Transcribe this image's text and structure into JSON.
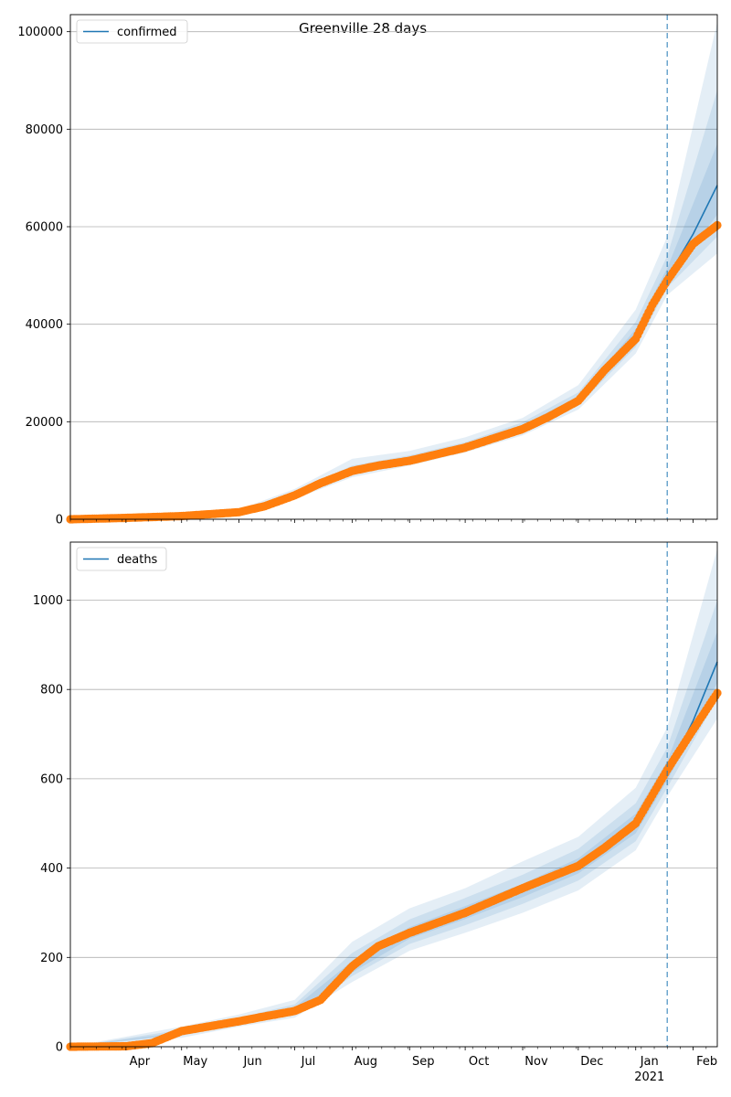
{
  "title": "Greenville 28 days",
  "colors": {
    "model_line": "#1f77b4",
    "observed": "#ff7f0e",
    "band": "#1f77b4",
    "grid": "#b0b0b0",
    "forecast_line": "#1f77b4"
  },
  "x_axis": {
    "start": "2020-03-02",
    "end": "2021-02-14",
    "month_ticks": [
      {
        "date": "2020-04-01",
        "label": "Apr"
      },
      {
        "date": "2020-05-01",
        "label": "May"
      },
      {
        "date": "2020-06-01",
        "label": "Jun"
      },
      {
        "date": "2020-07-01",
        "label": "Jul"
      },
      {
        "date": "2020-08-01",
        "label": "Aug"
      },
      {
        "date": "2020-09-01",
        "label": "Sep"
      },
      {
        "date": "2020-10-01",
        "label": "Oct"
      },
      {
        "date": "2020-11-01",
        "label": "Nov"
      },
      {
        "date": "2020-12-01",
        "label": "Dec"
      },
      {
        "date": "2021-01-01",
        "label": "Jan"
      },
      {
        "date": "2021-02-01",
        "label": "Feb"
      }
    ],
    "year_label": {
      "date": "2021-01-01",
      "label": "2021"
    },
    "forecast_start": "2021-01-18"
  },
  "chart_data": [
    {
      "type": "line",
      "legend": "confirmed",
      "legend_position": "upper-left",
      "grid": true,
      "ylim": [
        0,
        103500
      ],
      "yticks": [
        0,
        20000,
        40000,
        60000,
        80000,
        100000
      ],
      "model": [
        {
          "x": "2020-03-02",
          "y": 0
        },
        {
          "x": "2020-04-01",
          "y": 300
        },
        {
          "x": "2020-05-01",
          "y": 700
        },
        {
          "x": "2020-06-01",
          "y": 1500
        },
        {
          "x": "2020-06-15",
          "y": 2600
        },
        {
          "x": "2020-07-01",
          "y": 5000
        },
        {
          "x": "2020-07-15",
          "y": 7600
        },
        {
          "x": "2020-08-01",
          "y": 9800
        },
        {
          "x": "2020-08-15",
          "y": 10900
        },
        {
          "x": "2020-09-01",
          "y": 12000
        },
        {
          "x": "2020-10-01",
          "y": 14800
        },
        {
          "x": "2020-11-01",
          "y": 18600
        },
        {
          "x": "2020-11-15",
          "y": 21000
        },
        {
          "x": "2020-12-01",
          "y": 24500
        },
        {
          "x": "2020-12-15",
          "y": 30000
        },
        {
          "x": "2021-01-01",
          "y": 37500
        },
        {
          "x": "2021-01-10",
          "y": 44000
        },
        {
          "x": "2021-01-18",
          "y": 49500
        },
        {
          "x": "2021-02-01",
          "y": 58500
        },
        {
          "x": "2021-02-14",
          "y": 68500
        }
      ],
      "observed": [
        {
          "x": "2020-03-02",
          "y": 0
        },
        {
          "x": "2020-04-01",
          "y": 280
        },
        {
          "x": "2020-05-01",
          "y": 650
        },
        {
          "x": "2020-06-01",
          "y": 1450
        },
        {
          "x": "2020-06-15",
          "y": 2700
        },
        {
          "x": "2020-07-01",
          "y": 4900
        },
        {
          "x": "2020-07-15",
          "y": 7400
        },
        {
          "x": "2020-08-01",
          "y": 9900
        },
        {
          "x": "2020-08-15",
          "y": 11000
        },
        {
          "x": "2020-09-01",
          "y": 12000
        },
        {
          "x": "2020-10-01",
          "y": 14700
        },
        {
          "x": "2020-11-01",
          "y": 18500
        },
        {
          "x": "2020-11-15",
          "y": 21000
        },
        {
          "x": "2020-12-01",
          "y": 24300
        },
        {
          "x": "2020-12-15",
          "y": 30500
        },
        {
          "x": "2021-01-01",
          "y": 37000
        },
        {
          "x": "2021-01-10",
          "y": 44000
        },
        {
          "x": "2021-01-18",
          "y": 49000
        },
        {
          "x": "2021-02-01",
          "y": 56500
        },
        {
          "x": "2021-02-14",
          "y": 60300
        }
      ],
      "bands": [
        {
          "lower": [
            {
              "x": "2020-03-02",
              "y": 0
            },
            {
              "x": "2020-06-01",
              "y": 1100
            },
            {
              "x": "2020-07-01",
              "y": 4200
            },
            {
              "x": "2020-08-01",
              "y": 8600
            },
            {
              "x": "2020-09-01",
              "y": 11000
            },
            {
              "x": "2020-10-01",
              "y": 13700
            },
            {
              "x": "2020-11-01",
              "y": 17200
            },
            {
              "x": "2020-12-01",
              "y": 22500
            },
            {
              "x": "2021-01-01",
              "y": 34000
            },
            {
              "x": "2021-01-18",
              "y": 46000
            },
            {
              "x": "2021-02-14",
              "y": 54500
            }
          ],
          "upper": [
            {
              "x": "2020-03-02",
              "y": 0
            },
            {
              "x": "2020-06-01",
              "y": 2000
            },
            {
              "x": "2020-07-01",
              "y": 6200
            },
            {
              "x": "2020-08-01",
              "y": 12400
            },
            {
              "x": "2020-09-01",
              "y": 14000
            },
            {
              "x": "2020-10-01",
              "y": 16800
            },
            {
              "x": "2020-11-01",
              "y": 20800
            },
            {
              "x": "2020-12-01",
              "y": 27500
            },
            {
              "x": "2021-01-01",
              "y": 43000
            },
            {
              "x": "2021-01-18",
              "y": 58000
            },
            {
              "x": "2021-02-14",
              "y": 102000
            }
          ]
        },
        {
          "lower": [
            {
              "x": "2020-03-02",
              "y": 0
            },
            {
              "x": "2020-06-01",
              "y": 1250
            },
            {
              "x": "2020-07-01",
              "y": 4500
            },
            {
              "x": "2020-08-01",
              "y": 9100
            },
            {
              "x": "2020-09-01",
              "y": 11400
            },
            {
              "x": "2020-10-01",
              "y": 14100
            },
            {
              "x": "2020-11-01",
              "y": 17700
            },
            {
              "x": "2020-12-01",
              "y": 23300
            },
            {
              "x": "2021-01-01",
              "y": 35300
            },
            {
              "x": "2021-01-18",
              "y": 47500
            },
            {
              "x": "2021-02-14",
              "y": 58000
            }
          ],
          "upper": [
            {
              "x": "2020-03-02",
              "y": 0
            },
            {
              "x": "2020-06-01",
              "y": 1800
            },
            {
              "x": "2020-07-01",
              "y": 5600
            },
            {
              "x": "2020-08-01",
              "y": 11000
            },
            {
              "x": "2020-09-01",
              "y": 13100
            },
            {
              "x": "2020-10-01",
              "y": 15800
            },
            {
              "x": "2020-11-01",
              "y": 19900
            },
            {
              "x": "2020-12-01",
              "y": 26000
            },
            {
              "x": "2021-01-01",
              "y": 40500
            },
            {
              "x": "2021-01-18",
              "y": 54000
            },
            {
              "x": "2021-02-14",
              "y": 88000
            }
          ]
        },
        {
          "lower": [
            {
              "x": "2020-03-02",
              "y": 0
            },
            {
              "x": "2020-06-01",
              "y": 1380
            },
            {
              "x": "2020-07-01",
              "y": 4750
            },
            {
              "x": "2020-08-01",
              "y": 9500
            },
            {
              "x": "2020-09-01",
              "y": 11700
            },
            {
              "x": "2020-10-01",
              "y": 14450
            },
            {
              "x": "2020-11-01",
              "y": 18150
            },
            {
              "x": "2020-12-01",
              "y": 23900
            },
            {
              "x": "2021-01-01",
              "y": 36400
            },
            {
              "x": "2021-01-18",
              "y": 48700
            },
            {
              "x": "2021-02-14",
              "y": 62500
            }
          ],
          "upper": [
            {
              "x": "2020-03-02",
              "y": 0
            },
            {
              "x": "2020-06-01",
              "y": 1650
            },
            {
              "x": "2020-07-01",
              "y": 5250
            },
            {
              "x": "2020-08-01",
              "y": 10300
            },
            {
              "x": "2020-09-01",
              "y": 12500
            },
            {
              "x": "2020-10-01",
              "y": 15300
            },
            {
              "x": "2020-11-01",
              "y": 19250
            },
            {
              "x": "2020-12-01",
              "y": 25200
            },
            {
              "x": "2021-01-01",
              "y": 39000
            },
            {
              "x": "2021-01-18",
              "y": 51500
            },
            {
              "x": "2021-02-14",
              "y": 77000
            }
          ]
        }
      ]
    },
    {
      "type": "line",
      "legend": "deaths",
      "legend_position": "upper-left",
      "grid": true,
      "ylim": [
        0,
        1130
      ],
      "yticks": [
        0,
        200,
        400,
        600,
        800,
        1000
      ],
      "model": [
        {
          "x": "2020-03-02",
          "y": 0
        },
        {
          "x": "2020-04-01",
          "y": 1
        },
        {
          "x": "2020-04-15",
          "y": 8
        },
        {
          "x": "2020-05-01",
          "y": 30
        },
        {
          "x": "2020-05-15",
          "y": 44
        },
        {
          "x": "2020-06-01",
          "y": 56
        },
        {
          "x": "2020-06-15",
          "y": 68
        },
        {
          "x": "2020-07-01",
          "y": 82
        },
        {
          "x": "2020-07-15",
          "y": 110
        },
        {
          "x": "2020-08-01",
          "y": 175
        },
        {
          "x": "2020-08-15",
          "y": 220
        },
        {
          "x": "2020-09-01",
          "y": 255
        },
        {
          "x": "2020-10-01",
          "y": 300
        },
        {
          "x": "2020-11-01",
          "y": 350
        },
        {
          "x": "2020-12-01",
          "y": 405
        },
        {
          "x": "2020-12-15",
          "y": 445
        },
        {
          "x": "2021-01-01",
          "y": 500
        },
        {
          "x": "2021-01-18",
          "y": 610
        },
        {
          "x": "2021-02-01",
          "y": 730
        },
        {
          "x": "2021-02-14",
          "y": 862
        }
      ],
      "observed": [
        {
          "x": "2020-03-02",
          "y": 0
        },
        {
          "x": "2020-04-01",
          "y": 1
        },
        {
          "x": "2020-04-15",
          "y": 8
        },
        {
          "x": "2020-05-01",
          "y": 35
        },
        {
          "x": "2020-05-15",
          "y": 45
        },
        {
          "x": "2020-06-01",
          "y": 57
        },
        {
          "x": "2020-06-15",
          "y": 68
        },
        {
          "x": "2020-07-01",
          "y": 80
        },
        {
          "x": "2020-07-15",
          "y": 105
        },
        {
          "x": "2020-08-01",
          "y": 180
        },
        {
          "x": "2020-08-15",
          "y": 225
        },
        {
          "x": "2020-09-01",
          "y": 255
        },
        {
          "x": "2020-10-01",
          "y": 300
        },
        {
          "x": "2020-11-01",
          "y": 355
        },
        {
          "x": "2020-12-01",
          "y": 405
        },
        {
          "x": "2020-12-15",
          "y": 445
        },
        {
          "x": "2021-01-01",
          "y": 500
        },
        {
          "x": "2021-01-18",
          "y": 620
        },
        {
          "x": "2021-02-01",
          "y": 710
        },
        {
          "x": "2021-02-14",
          "y": 792
        }
      ],
      "bands": [
        {
          "lower": [
            {
              "x": "2020-03-02",
              "y": 0
            },
            {
              "x": "2020-05-01",
              "y": 20
            },
            {
              "x": "2020-06-01",
              "y": 45
            },
            {
              "x": "2020-07-01",
              "y": 65
            },
            {
              "x": "2020-08-01",
              "y": 145
            },
            {
              "x": "2020-09-01",
              "y": 215
            },
            {
              "x": "2020-10-01",
              "y": 255
            },
            {
              "x": "2020-11-01",
              "y": 300
            },
            {
              "x": "2020-12-01",
              "y": 350
            },
            {
              "x": "2021-01-01",
              "y": 440
            },
            {
              "x": "2021-01-18",
              "y": 560
            },
            {
              "x": "2021-02-14",
              "y": 735
            }
          ],
          "upper": [
            {
              "x": "2020-03-02",
              "y": 0
            },
            {
              "x": "2020-05-01",
              "y": 45
            },
            {
              "x": "2020-06-01",
              "y": 72
            },
            {
              "x": "2020-07-01",
              "y": 105
            },
            {
              "x": "2020-08-01",
              "y": 235
            },
            {
              "x": "2020-09-01",
              "y": 310
            },
            {
              "x": "2020-10-01",
              "y": 355
            },
            {
              "x": "2020-11-01",
              "y": 415
            },
            {
              "x": "2020-12-01",
              "y": 470
            },
            {
              "x": "2021-01-01",
              "y": 580
            },
            {
              "x": "2021-01-18",
              "y": 715
            },
            {
              "x": "2021-02-14",
              "y": 1115
            }
          ]
        },
        {
          "lower": [
            {
              "x": "2020-03-02",
              "y": 0
            },
            {
              "x": "2020-05-01",
              "y": 25
            },
            {
              "x": "2020-06-01",
              "y": 49
            },
            {
              "x": "2020-07-01",
              "y": 71
            },
            {
              "x": "2020-08-01",
              "y": 158
            },
            {
              "x": "2020-09-01",
              "y": 230
            },
            {
              "x": "2020-10-01",
              "y": 272
            },
            {
              "x": "2020-11-01",
              "y": 320
            },
            {
              "x": "2020-12-01",
              "y": 372
            },
            {
              "x": "2021-01-01",
              "y": 460
            },
            {
              "x": "2021-01-18",
              "y": 580
            },
            {
              "x": "2021-02-14",
              "y": 780
            }
          ],
          "upper": [
            {
              "x": "2020-03-02",
              "y": 0
            },
            {
              "x": "2020-05-01",
              "y": 38
            },
            {
              "x": "2020-06-01",
              "y": 65
            },
            {
              "x": "2020-07-01",
              "y": 95
            },
            {
              "x": "2020-08-01",
              "y": 210
            },
            {
              "x": "2020-09-01",
              "y": 285
            },
            {
              "x": "2020-10-01",
              "y": 333
            },
            {
              "x": "2020-11-01",
              "y": 385
            },
            {
              "x": "2020-12-01",
              "y": 443
            },
            {
              "x": "2021-01-01",
              "y": 545
            },
            {
              "x": "2021-01-18",
              "y": 670
            },
            {
              "x": "2021-02-14",
              "y": 1000
            }
          ]
        },
        {
          "lower": [
            {
              "x": "2020-03-02",
              "y": 0
            },
            {
              "x": "2020-05-01",
              "y": 28
            },
            {
              "x": "2020-06-01",
              "y": 52
            },
            {
              "x": "2020-07-01",
              "y": 76
            },
            {
              "x": "2020-08-01",
              "y": 166
            },
            {
              "x": "2020-09-01",
              "y": 242
            },
            {
              "x": "2020-10-01",
              "y": 286
            },
            {
              "x": "2020-11-01",
              "y": 335
            },
            {
              "x": "2020-12-01",
              "y": 388
            },
            {
              "x": "2021-01-01",
              "y": 478
            },
            {
              "x": "2021-01-18",
              "y": 595
            },
            {
              "x": "2021-02-14",
              "y": 815
            }
          ],
          "upper": [
            {
              "x": "2020-03-02",
              "y": 0
            },
            {
              "x": "2020-05-01",
              "y": 33
            },
            {
              "x": "2020-06-01",
              "y": 60
            },
            {
              "x": "2020-07-01",
              "y": 88
            },
            {
              "x": "2020-08-01",
              "y": 192
            },
            {
              "x": "2020-09-01",
              "y": 268
            },
            {
              "x": "2020-10-01",
              "y": 315
            },
            {
              "x": "2020-11-01",
              "y": 365
            },
            {
              "x": "2020-12-01",
              "y": 422
            },
            {
              "x": "2021-01-01",
              "y": 522
            },
            {
              "x": "2021-01-18",
              "y": 640
            },
            {
              "x": "2021-02-14",
              "y": 930
            }
          ]
        }
      ]
    }
  ]
}
